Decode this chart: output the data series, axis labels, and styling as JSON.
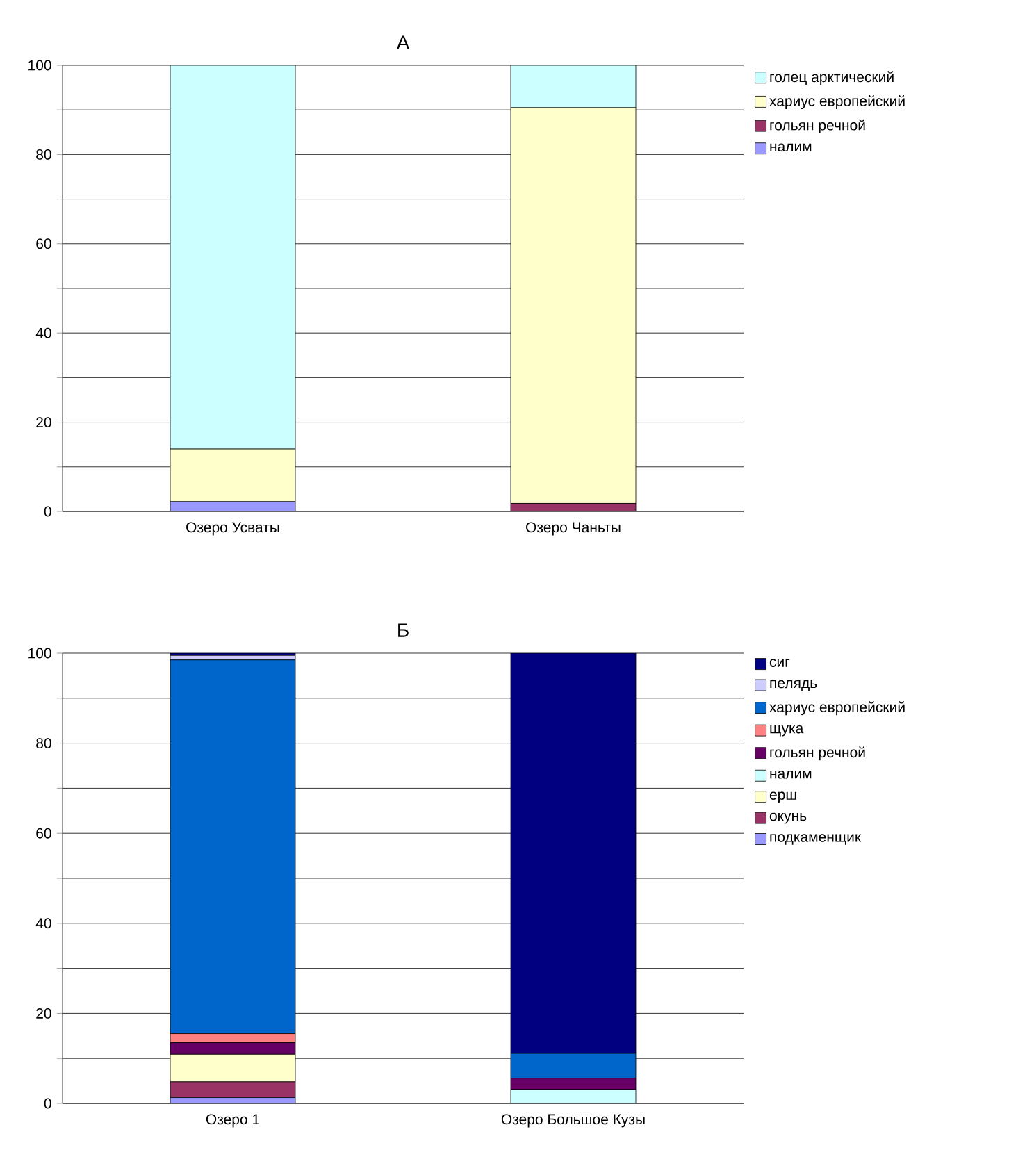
{
  "chart_data": [
    {
      "type": "bar",
      "title": "А",
      "stacked": true,
      "legend": "right",
      "grid": "y",
      "categories": [
        "Озеро Усваты",
        "Озеро Чаньты"
      ],
      "ylim": [
        0,
        100
      ],
      "yticks": [
        0,
        {
          "value": 10,
          "label": null
        },
        20,
        {
          "value": 30,
          "label": null
        },
        40,
        {
          "value": 50,
          "label": null
        },
        60,
        {
          "value": 70,
          "label": null
        },
        80,
        {
          "value": 90,
          "label": null
        },
        100
      ],
      "series": [
        {
          "name": "налим",
          "color": "#9999ff",
          "values": [
            2.2,
            0
          ]
        },
        {
          "name": "гольян речной",
          "color": "#993366",
          "values": [
            0,
            1.8
          ]
        },
        {
          "name": "хариус европейский",
          "color": "#ffffcc",
          "values": [
            11.8,
            88.7
          ]
        },
        {
          "name": "голец арктический",
          "color": "#ccffff",
          "values": [
            86,
            9.5
          ]
        }
      ]
    },
    {
      "type": "bar",
      "title": "Б",
      "stacked": true,
      "legend": "right",
      "grid": "y",
      "categories": [
        "Озеро 1",
        "Озеро Большое Кузы"
      ],
      "ylim": [
        0,
        100
      ],
      "yticks": [
        0,
        {
          "value": 10,
          "label": null
        },
        20,
        {
          "value": 30,
          "label": null
        },
        40,
        {
          "value": 50,
          "label": null
        },
        60,
        {
          "value": 70,
          "label": null
        },
        80,
        {
          "value": 90,
          "label": null
        },
        100
      ],
      "series": [
        {
          "name": "подкаменщик",
          "color": "#9999ff",
          "values": [
            1.3,
            0
          ]
        },
        {
          "name": "окунь",
          "color": "#993366",
          "values": [
            3.5,
            0
          ]
        },
        {
          "name": "ерш",
          "color": "#ffffcc",
          "values": [
            6.1,
            0
          ]
        },
        {
          "name": "налим",
          "color": "#ccffff",
          "values": [
            0,
            3.1
          ]
        },
        {
          "name": "гольян речной",
          "color": "#660066",
          "values": [
            2.6,
            2.5
          ]
        },
        {
          "name": "щука",
          "color": "#ff8080",
          "values": [
            2,
            0
          ]
        },
        {
          "name": "хариус европейский",
          "color": "#0066cc",
          "values": [
            83,
            5.5
          ]
        },
        {
          "name": "пелядь",
          "color": "#ccccff",
          "values": [
            1,
            0
          ]
        },
        {
          "name": "сиг",
          "color": "#000080",
          "values": [
            0.5,
            88.9
          ]
        }
      ]
    }
  ]
}
